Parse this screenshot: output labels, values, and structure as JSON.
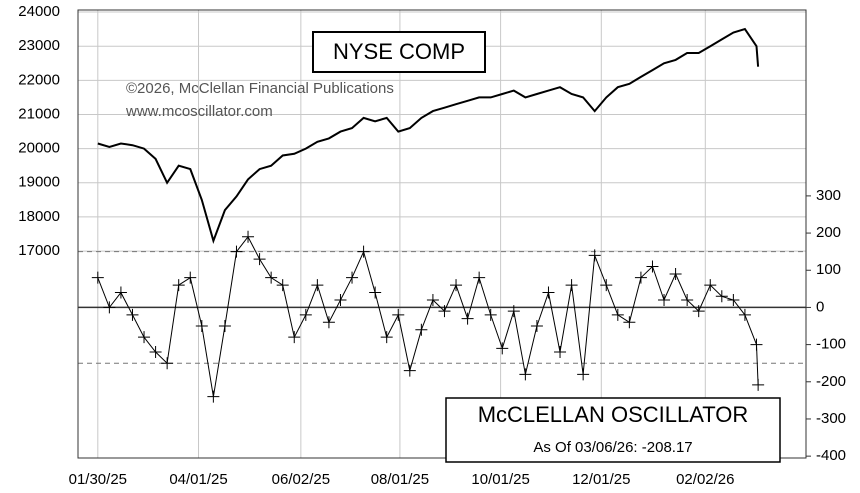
{
  "chart_data": {
    "type": "line",
    "annotations": {
      "copyright": "©2026, McClellan Financial Publications",
      "website": "www.mcoscillator.com",
      "as_of": "As Of 03/06/26: -208.17"
    },
    "x": [
      "2025-01-30",
      "2025-02-06",
      "2025-02-13",
      "2025-02-20",
      "2025-02-27",
      "2025-03-06",
      "2025-03-13",
      "2025-03-20",
      "2025-03-27",
      "2025-04-03",
      "2025-04-10",
      "2025-04-17",
      "2025-04-24",
      "2025-05-01",
      "2025-05-08",
      "2025-05-15",
      "2025-05-22",
      "2025-05-29",
      "2025-06-05",
      "2025-06-12",
      "2025-06-19",
      "2025-06-26",
      "2025-07-03",
      "2025-07-10",
      "2025-07-17",
      "2025-07-24",
      "2025-07-31",
      "2025-08-07",
      "2025-08-14",
      "2025-08-21",
      "2025-08-28",
      "2025-09-04",
      "2025-09-11",
      "2025-09-18",
      "2025-09-25",
      "2025-10-02",
      "2025-10-09",
      "2025-10-16",
      "2025-10-23",
      "2025-10-30",
      "2025-11-06",
      "2025-11-13",
      "2025-11-20",
      "2025-11-27",
      "2025-12-04",
      "2025-12-11",
      "2025-12-18",
      "2025-12-25",
      "2026-01-01",
      "2026-01-08",
      "2026-01-15",
      "2026-01-22",
      "2026-01-29",
      "2026-02-05",
      "2026-02-12",
      "2026-02-19",
      "2026-02-26",
      "2026-03-05",
      "2026-03-06"
    ],
    "xlim": [
      "2025-01-18",
      "2026-04-04"
    ],
    "xticks": [
      {
        "value": "2025-01-30",
        "label": "01/30/25"
      },
      {
        "value": "2025-04-01",
        "label": "04/01/25"
      },
      {
        "value": "2025-06-02",
        "label": "06/02/25"
      },
      {
        "value": "2025-08-01",
        "label": "08/01/25"
      },
      {
        "value": "2025-10-01",
        "label": "10/01/25"
      },
      {
        "value": "2025-12-01",
        "label": "12/01/25"
      },
      {
        "value": "2026-02-02",
        "label": "02/02/26"
      }
    ],
    "ylim": [
      10940,
      24060
    ],
    "yticks": [
      17000,
      18000,
      19000,
      20000,
      21000,
      22000,
      23000,
      24000
    ],
    "y2lim": [
      -405,
      800
    ],
    "y2ticks": [
      -400,
      -300,
      -200,
      -100,
      0,
      100,
      200,
      300
    ],
    "y2_lines": [
      {
        "value": 150,
        "style": "dashed"
      },
      {
        "value": -150,
        "style": "dashed"
      },
      {
        "value": 0,
        "style": "solid"
      }
    ],
    "grid": true,
    "series": [
      {
        "name": "NYSE COMP",
        "color": "#000000",
        "values": [
          20150,
          20050,
          20150,
          20100,
          20000,
          19700,
          19000,
          19500,
          19400,
          18500,
          17300,
          18200,
          18600,
          19100,
          19400,
          19500,
          19800,
          19850,
          20000,
          20200,
          20300,
          20500,
          20600,
          20900,
          20800,
          20900,
          20500,
          20600,
          20900,
          21100,
          21200,
          21300,
          21400,
          21500,
          21500,
          21600,
          21700,
          21500,
          21600,
          21700,
          21800,
          21600,
          21500,
          21100,
          21500,
          21800,
          21900,
          22100,
          22300,
          22500,
          22600,
          22800,
          22800,
          23000,
          23200,
          23400,
          23500,
          23000,
          22400
        ]
      },
      {
        "name": "McCLELLAN OSCILLATOR",
        "color": "#000000",
        "axis": "y2",
        "markers": "cross",
        "values": [
          80,
          0,
          40,
          -20,
          -80,
          -120,
          -150,
          60,
          80,
          -50,
          -240,
          -50,
          150,
          190,
          130,
          80,
          60,
          -80,
          -20,
          60,
          -40,
          20,
          80,
          150,
          40,
          -80,
          -20,
          -170,
          -60,
          20,
          -10,
          60,
          -30,
          80,
          -20,
          -110,
          -10,
          -180,
          -50,
          40,
          -120,
          60,
          -180,
          140,
          60,
          -20,
          -40,
          80,
          110,
          20,
          90,
          20,
          -10,
          60,
          30,
          20,
          -20,
          -100,
          -208.17
        ]
      }
    ]
  }
}
